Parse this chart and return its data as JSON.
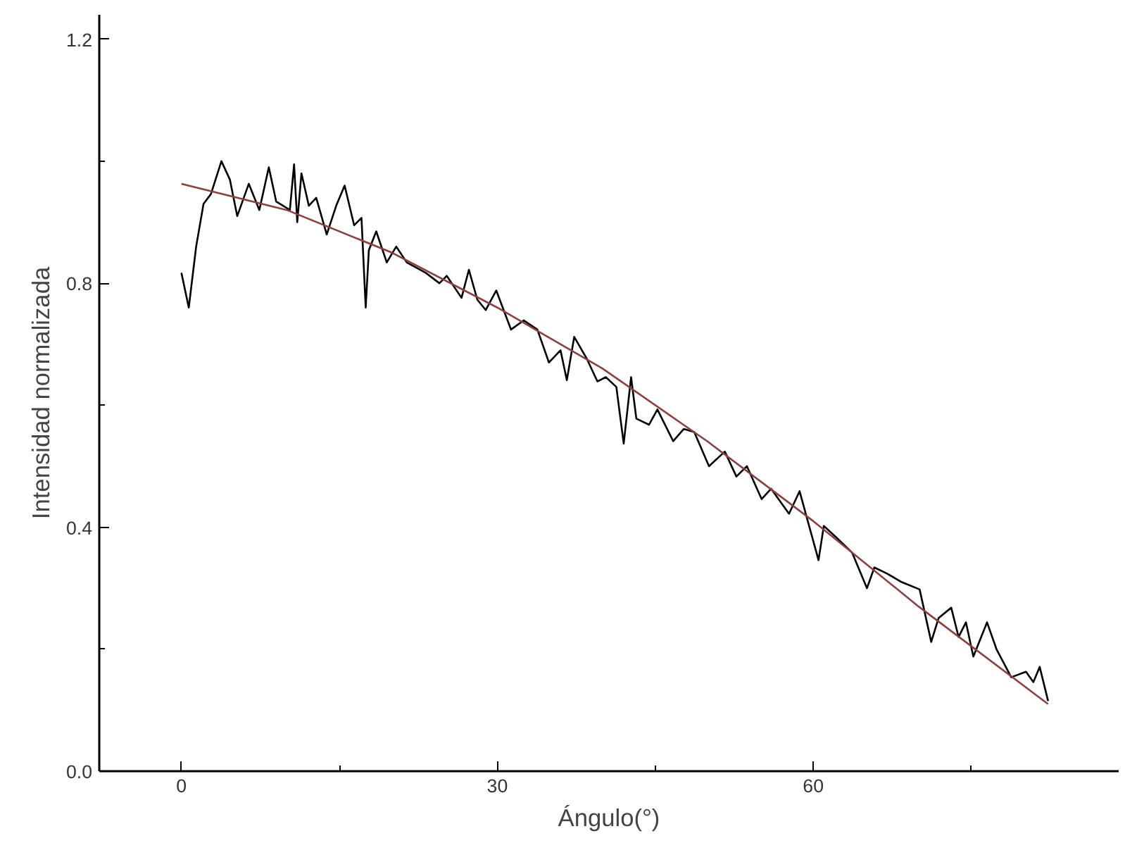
{
  "chart_data": {
    "type": "line",
    "xlabel": "Ángulo(°)",
    "ylabel": "Intensidad normalizada",
    "xlim": [
      -7.8,
      89
    ],
    "ylim": [
      0,
      1.24
    ],
    "xticks": [
      0,
      {
        "value": 15,
        "label": null
      },
      30,
      {
        "value": 45,
        "label": null
      },
      60,
      {
        "value": 75,
        "label": null
      }
    ],
    "yticks": [
      {
        "value": 0,
        "label": "0.0"
      },
      {
        "value": 0.2,
        "label": null
      },
      0.4,
      {
        "value": 0.6,
        "label": null
      },
      0.8,
      {
        "value": 1.0,
        "label": null
      },
      1.2
    ],
    "marker": "none",
    "line_style": "solid",
    "series": [
      {
        "color": "#000000",
        "x": [
          0,
          0.7,
          1.4,
          2.1,
          2.8,
          3.8,
          4.6,
          5.3,
          6.4,
          7.4,
          8.3,
          9.0,
          10.3,
          10.7,
          11.0,
          11.4,
          12.1,
          12.8,
          13.8,
          14.7,
          15.5,
          16.4,
          17.1,
          17.5,
          17.8,
          18.5,
          19.5,
          20.4,
          21.4,
          23.2,
          24.5,
          25.2,
          26.6,
          27.3,
          28.1,
          28.9,
          29.9,
          31.3,
          32.5,
          33.8,
          34.9,
          36.0,
          36.6,
          37.3,
          38.5,
          39.5,
          40.3,
          41.3,
          42.0,
          42.7,
          43.2,
          44.4,
          45.2,
          46.7,
          47.7,
          48.7,
          50.1,
          51.6,
          52.7,
          53.7,
          55.1,
          56.0,
          57.7,
          58.7,
          59.4,
          60.5,
          61.0,
          62.2,
          63.7,
          65.1,
          65.8,
          67.0,
          68.4,
          70.1,
          71.2,
          71.9,
          73.1,
          73.8,
          74.5,
          75.2,
          76.5,
          77.4,
          78.8,
          80.2,
          80.9,
          81.5,
          82.3
        ],
        "values": [
          0.817,
          0.76,
          0.86,
          0.93,
          0.946,
          1.0,
          0.97,
          0.91,
          0.963,
          0.92,
          0.99,
          0.934,
          0.92,
          0.995,
          0.9,
          0.98,
          0.927,
          0.94,
          0.88,
          0.927,
          0.96,
          0.895,
          0.907,
          0.76,
          0.854,
          0.885,
          0.834,
          0.86,
          0.834,
          0.817,
          0.8,
          0.812,
          0.776,
          0.822,
          0.773,
          0.756,
          0.788,
          0.724,
          0.739,
          0.724,
          0.67,
          0.69,
          0.641,
          0.712,
          0.676,
          0.639,
          0.646,
          0.63,
          0.537,
          0.646,
          0.578,
          0.568,
          0.593,
          0.541,
          0.561,
          0.556,
          0.5,
          0.524,
          0.483,
          0.5,
          0.446,
          0.463,
          0.422,
          0.459,
          0.415,
          0.346,
          0.402,
          0.383,
          0.358,
          0.3,
          0.334,
          0.324,
          0.31,
          0.298,
          0.212,
          0.251,
          0.268,
          0.22,
          0.244,
          0.188,
          0.244,
          0.2,
          0.154,
          0.163,
          0.146,
          0.171,
          0.115
        ]
      },
      {
        "color": "#8b4040",
        "x": [
          0,
          10,
          20,
          30,
          40,
          50,
          60,
          70,
          82.3
        ],
        "values": [
          0.963,
          0.92,
          0.85,
          0.76,
          0.66,
          0.54,
          0.41,
          0.27,
          0.11
        ]
      }
    ]
  }
}
